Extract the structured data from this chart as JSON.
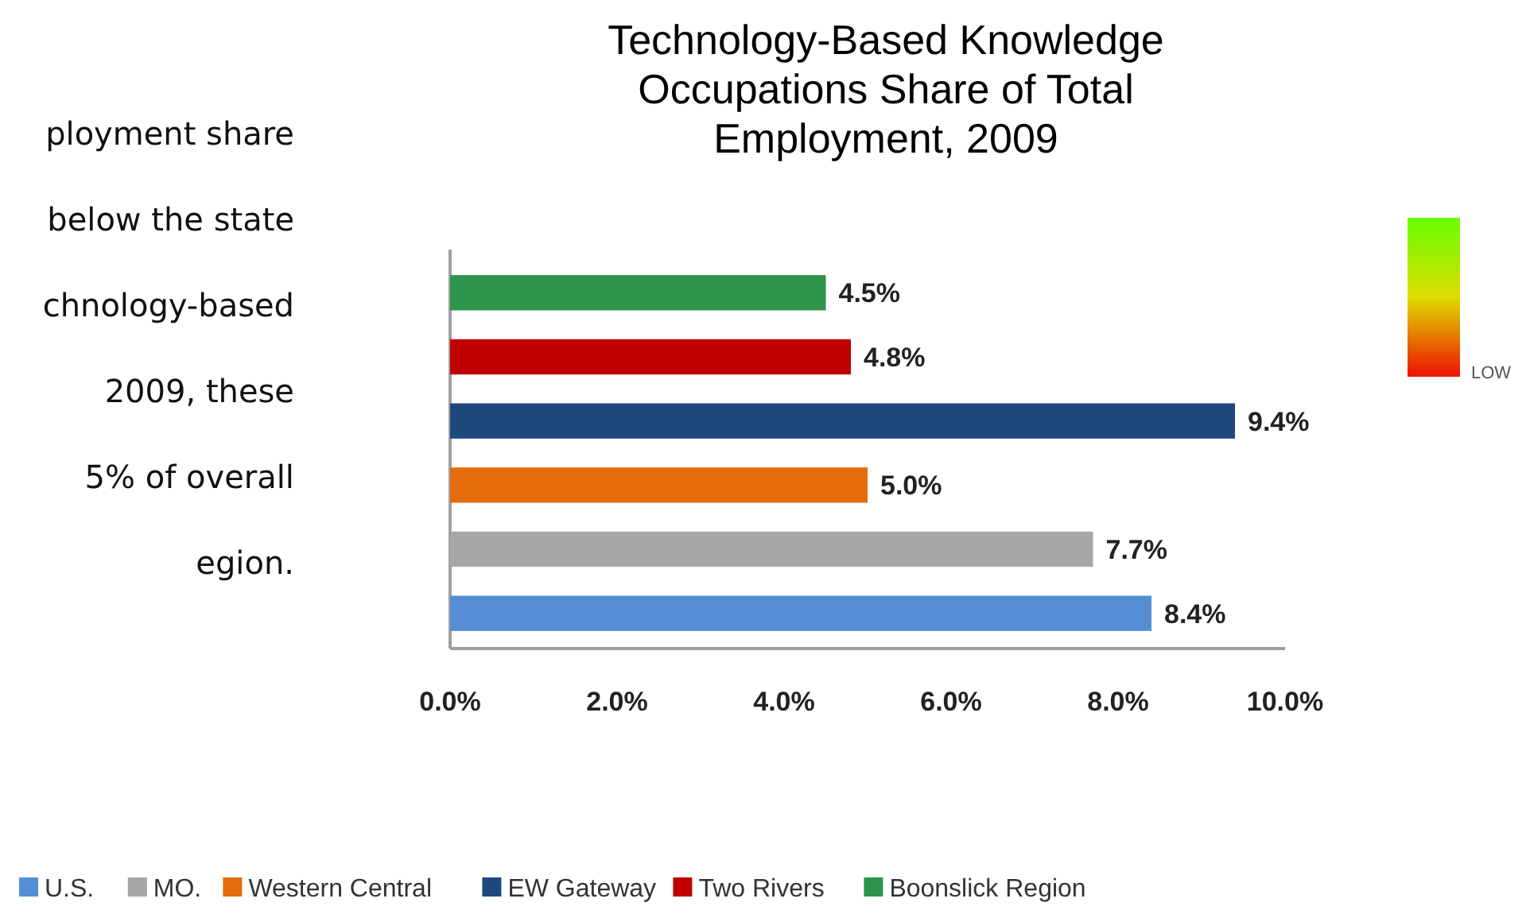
{
  "chart_data": {
    "type": "bar",
    "orientation": "horizontal",
    "title": "Technology-Based Knowledge Occupations Share of Total Employment, 2009",
    "categories": [
      null,
      null,
      null,
      null,
      null,
      null
    ],
    "series": [
      {
        "name": "U.S.",
        "color": "#558ed5",
        "values": [
          null,
          null,
          null,
          null,
          null,
          8.4
        ],
        "value_labels": [
          null,
          null,
          null,
          null,
          null,
          "8.4%"
        ]
      },
      {
        "name": "MO.",
        "color": "#a6a6a6",
        "values": [
          null,
          null,
          null,
          null,
          7.7,
          null
        ],
        "value_labels": [
          null,
          null,
          null,
          null,
          "7.7%",
          null
        ]
      },
      {
        "name": "Western Central",
        "color": "#e46c0a",
        "values": [
          null,
          null,
          null,
          5.0,
          null,
          null
        ],
        "value_labels": [
          null,
          null,
          null,
          "5.0%",
          null,
          null
        ]
      },
      {
        "name": "EW Gateway",
        "color": "#1f497d",
        "values": [
          null,
          null,
          9.4,
          null,
          null,
          null
        ],
        "value_labels": [
          null,
          null,
          "9.4%",
          null,
          null,
          null
        ]
      },
      {
        "name": "Two Rivers",
        "color": "#c00000",
        "values": [
          null,
          4.8,
          null,
          null,
          null,
          null
        ],
        "value_labels": [
          null,
          "4.8%",
          null,
          null,
          null,
          null
        ]
      },
      {
        "name": "Boonslick Region",
        "color": "#2e944b",
        "values": [
          4.5,
          null,
          null,
          null,
          null,
          null
        ],
        "value_labels": [
          "4.5%",
          null,
          null,
          null,
          null,
          null
        ]
      }
    ],
    "xlim": [
      0,
      10
    ],
    "xticks": [
      {
        "value": 0,
        "label": "0.0%"
      },
      {
        "value": 2,
        "label": "2.0%"
      },
      {
        "value": 4,
        "label": "4.0%"
      },
      {
        "value": 6,
        "label": "6.0%"
      },
      {
        "value": 8,
        "label": "8.0%"
      },
      {
        "value": 10,
        "label": "10.0%"
      }
    ],
    "legend": "bottom",
    "annotations": [
      "ployment share",
      "below the state",
      "chnology-based",
      "2009, these",
      "5% of overall",
      "egion.",
      "LOW"
    ]
  }
}
